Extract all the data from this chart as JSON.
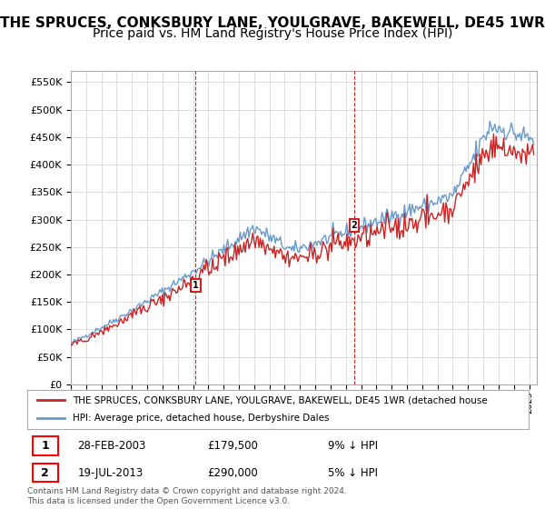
{
  "title": "THE SPRUCES, CONKSBURY LANE, YOULGRAVE, BAKEWELL, DE45 1WR",
  "subtitle": "Price paid vs. HM Land Registry's House Price Index (HPI)",
  "ytick_values": [
    0,
    50000,
    100000,
    150000,
    200000,
    250000,
    300000,
    350000,
    400000,
    450000,
    500000,
    550000
  ],
  "ylim": [
    0,
    570000
  ],
  "xlim_start": 1995.0,
  "xlim_end": 2025.5,
  "hpi_color": "#6699cc",
  "price_color": "#cc2222",
  "sale1_x": 2003.167,
  "sale1_y": 179500,
  "sale1_label": "1",
  "sale2_x": 2013.54,
  "sale2_y": 290000,
  "sale2_label": "2",
  "legend_line1": "THE SPRUCES, CONKSBURY LANE, YOULGRAVE, BAKEWELL, DE45 1WR (detached house",
  "legend_line2": "HPI: Average price, detached house, Derbyshire Dales",
  "table_row1": [
    "1",
    "28-FEB-2003",
    "£179,500",
    "9% ↓ HPI"
  ],
  "table_row2": [
    "2",
    "19-JUL-2013",
    "£290,000",
    "5% ↓ HPI"
  ],
  "footnote": "Contains HM Land Registry data © Crown copyright and database right 2024.\nThis data is licensed under the Open Government Licence v3.0.",
  "background_color": "#ffffff",
  "grid_color": "#dddddd",
  "title_fontsize": 11,
  "subtitle_fontsize": 10
}
